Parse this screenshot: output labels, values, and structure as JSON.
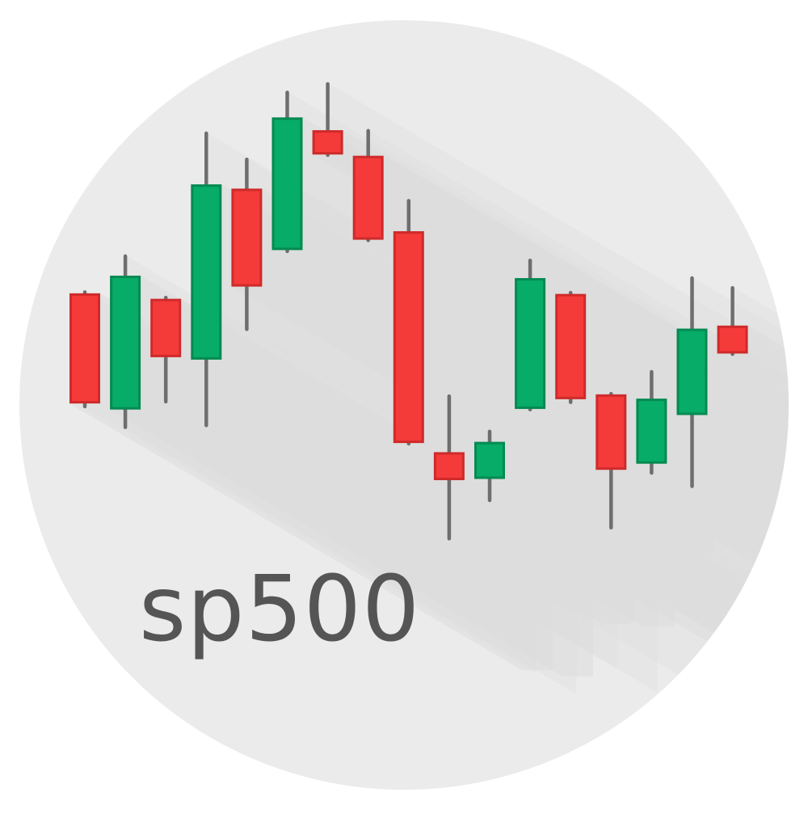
{
  "logo": {
    "text": "sp500"
  },
  "colors": {
    "background_circle": "#ebebeb",
    "long_shadow": "#dcdcdc",
    "up": "#06ac67",
    "up_border": "#048a52",
    "down": "#f53a3a",
    "down_border": "#cf2a2a",
    "wick": "#6e6e6e",
    "text": "#555555"
  },
  "chart_data": {
    "type": "candlestick",
    "title": "",
    "xlabel": "",
    "ylabel": "",
    "ylim": [
      0,
      100
    ],
    "grid": false,
    "legend": "none",
    "candles": [
      {
        "index": 1,
        "direction": "down",
        "open": 63.1,
        "close": 45.0,
        "high": 63.3,
        "low": 44.5
      },
      {
        "index": 2,
        "direction": "up",
        "open": 44.0,
        "close": 66.0,
        "high": 69.2,
        "low": 41.1
      },
      {
        "index": 3,
        "direction": "down",
        "open": 62.2,
        "close": 52.6,
        "high": 62.4,
        "low": 45.3
      },
      {
        "index": 4,
        "direction": "up",
        "open": 52.2,
        "close": 81.0,
        "high": 89.4,
        "low": 41.4
      },
      {
        "index": 5,
        "direction": "down",
        "open": 80.3,
        "close": 64.2,
        "high": 85.1,
        "low": 57.2
      },
      {
        "index": 6,
        "direction": "up",
        "open": 70.2,
        "close": 92.0,
        "high": 96.1,
        "low": 70.0
      },
      {
        "index": 7,
        "direction": "down",
        "open": 89.9,
        "close": 85.9,
        "high": 97.5,
        "low": 85.8
      },
      {
        "index": 8,
        "direction": "down",
        "open": 85.7,
        "close": 71.9,
        "high": 89.8,
        "low": 71.8
      },
      {
        "index": 9,
        "direction": "down",
        "open": 73.3,
        "close": 38.5,
        "high": 78.3,
        "low": 38.4
      },
      {
        "index": 10,
        "direction": "down",
        "open": 37.0,
        "close": 32.4,
        "high": 46.2,
        "low": 22.8
      },
      {
        "index": 11,
        "direction": "up",
        "open": 32.6,
        "close": 38.7,
        "high": 40.4,
        "low": 29.1
      },
      {
        "index": 12,
        "direction": "up",
        "open": 44.1,
        "close": 65.6,
        "high": 68.5,
        "low": 44.0
      },
      {
        "index": 13,
        "direction": "down",
        "open": 63.0,
        "close": 45.7,
        "high": 63.2,
        "low": 45.2
      },
      {
        "index": 14,
        "direction": "down",
        "open": 46.5,
        "close": 34.1,
        "high": 46.6,
        "low": 24.6
      },
      {
        "index": 15,
        "direction": "up",
        "open": 35.1,
        "close": 45.8,
        "high": 50.2,
        "low": 33.6
      },
      {
        "index": 16,
        "direction": "up",
        "open": 43.1,
        "close": 57.3,
        "high": 65.6,
        "low": 31.4
      },
      {
        "index": 17,
        "direction": "down",
        "open": 57.8,
        "close": 53.2,
        "high": 64.0,
        "low": 53.1
      }
    ]
  }
}
